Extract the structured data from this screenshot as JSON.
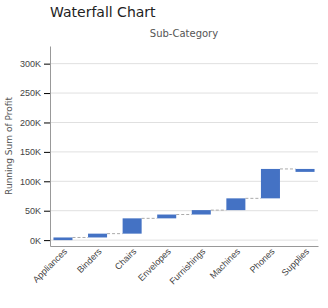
{
  "chart_data": {
    "type": "waterfall",
    "title": "Waterfall Chart",
    "subtitle": "Sub-Category",
    "y_label": "Running Sum of Profit",
    "categories": [
      "Appliances",
      "Binders",
      "Chairs",
      "Envelopes",
      "Furnishings",
      "Machines",
      "Phones",
      "Supplies"
    ],
    "values": [
      4500,
      6500,
      26000,
      6500,
      7500,
      20000,
      50000,
      -5000
    ],
    "color": "#4472C4",
    "ylim": [
      -10000,
      330000
    ],
    "yticks": [
      {
        "value": 0,
        "label": "0K"
      },
      {
        "value": 50000,
        "label": "50K"
      },
      {
        "value": 100000,
        "label": "100K"
      },
      {
        "value": 150000,
        "label": "150K"
      },
      {
        "value": 200000,
        "label": "200K"
      },
      {
        "value": 250000,
        "label": "250K"
      },
      {
        "value": 300000,
        "label": "300K"
      }
    ],
    "grid": true
  }
}
